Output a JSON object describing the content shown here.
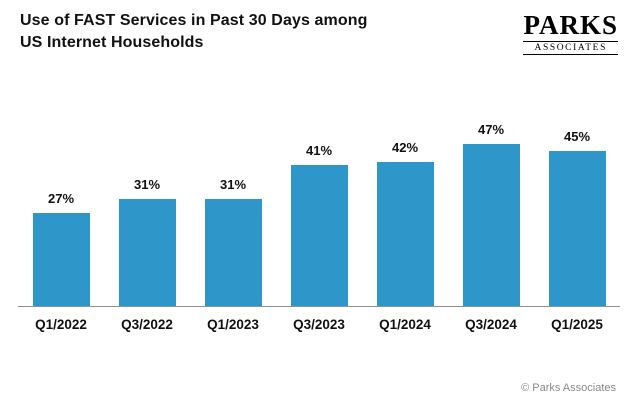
{
  "header": {
    "title_line1": "Use of FAST Services in Past 30 Days among",
    "title_line2": "US Internet Households",
    "logo": {
      "primary": "PARKS",
      "secondary": "ASSOCIATES"
    }
  },
  "chart_data": {
    "type": "bar",
    "title": "Use of FAST Services in Past 30 Days among US Internet Households",
    "categories": [
      "Q1/2022",
      "Q3/2022",
      "Q1/2023",
      "Q3/2023",
      "Q1/2024",
      "Q3/2024",
      "Q1/2025"
    ],
    "values": [
      27,
      31,
      31,
      41,
      42,
      47,
      45
    ],
    "value_labels": [
      "27%",
      "31%",
      "31%",
      "41%",
      "42%",
      "47%",
      "45%"
    ],
    "xlabel": "",
    "ylabel": "",
    "ylim": [
      0,
      50
    ],
    "bar_color": "#2E96C8",
    "grid": false,
    "legend": false
  },
  "footer": {
    "copyright": "© Parks Associates"
  }
}
